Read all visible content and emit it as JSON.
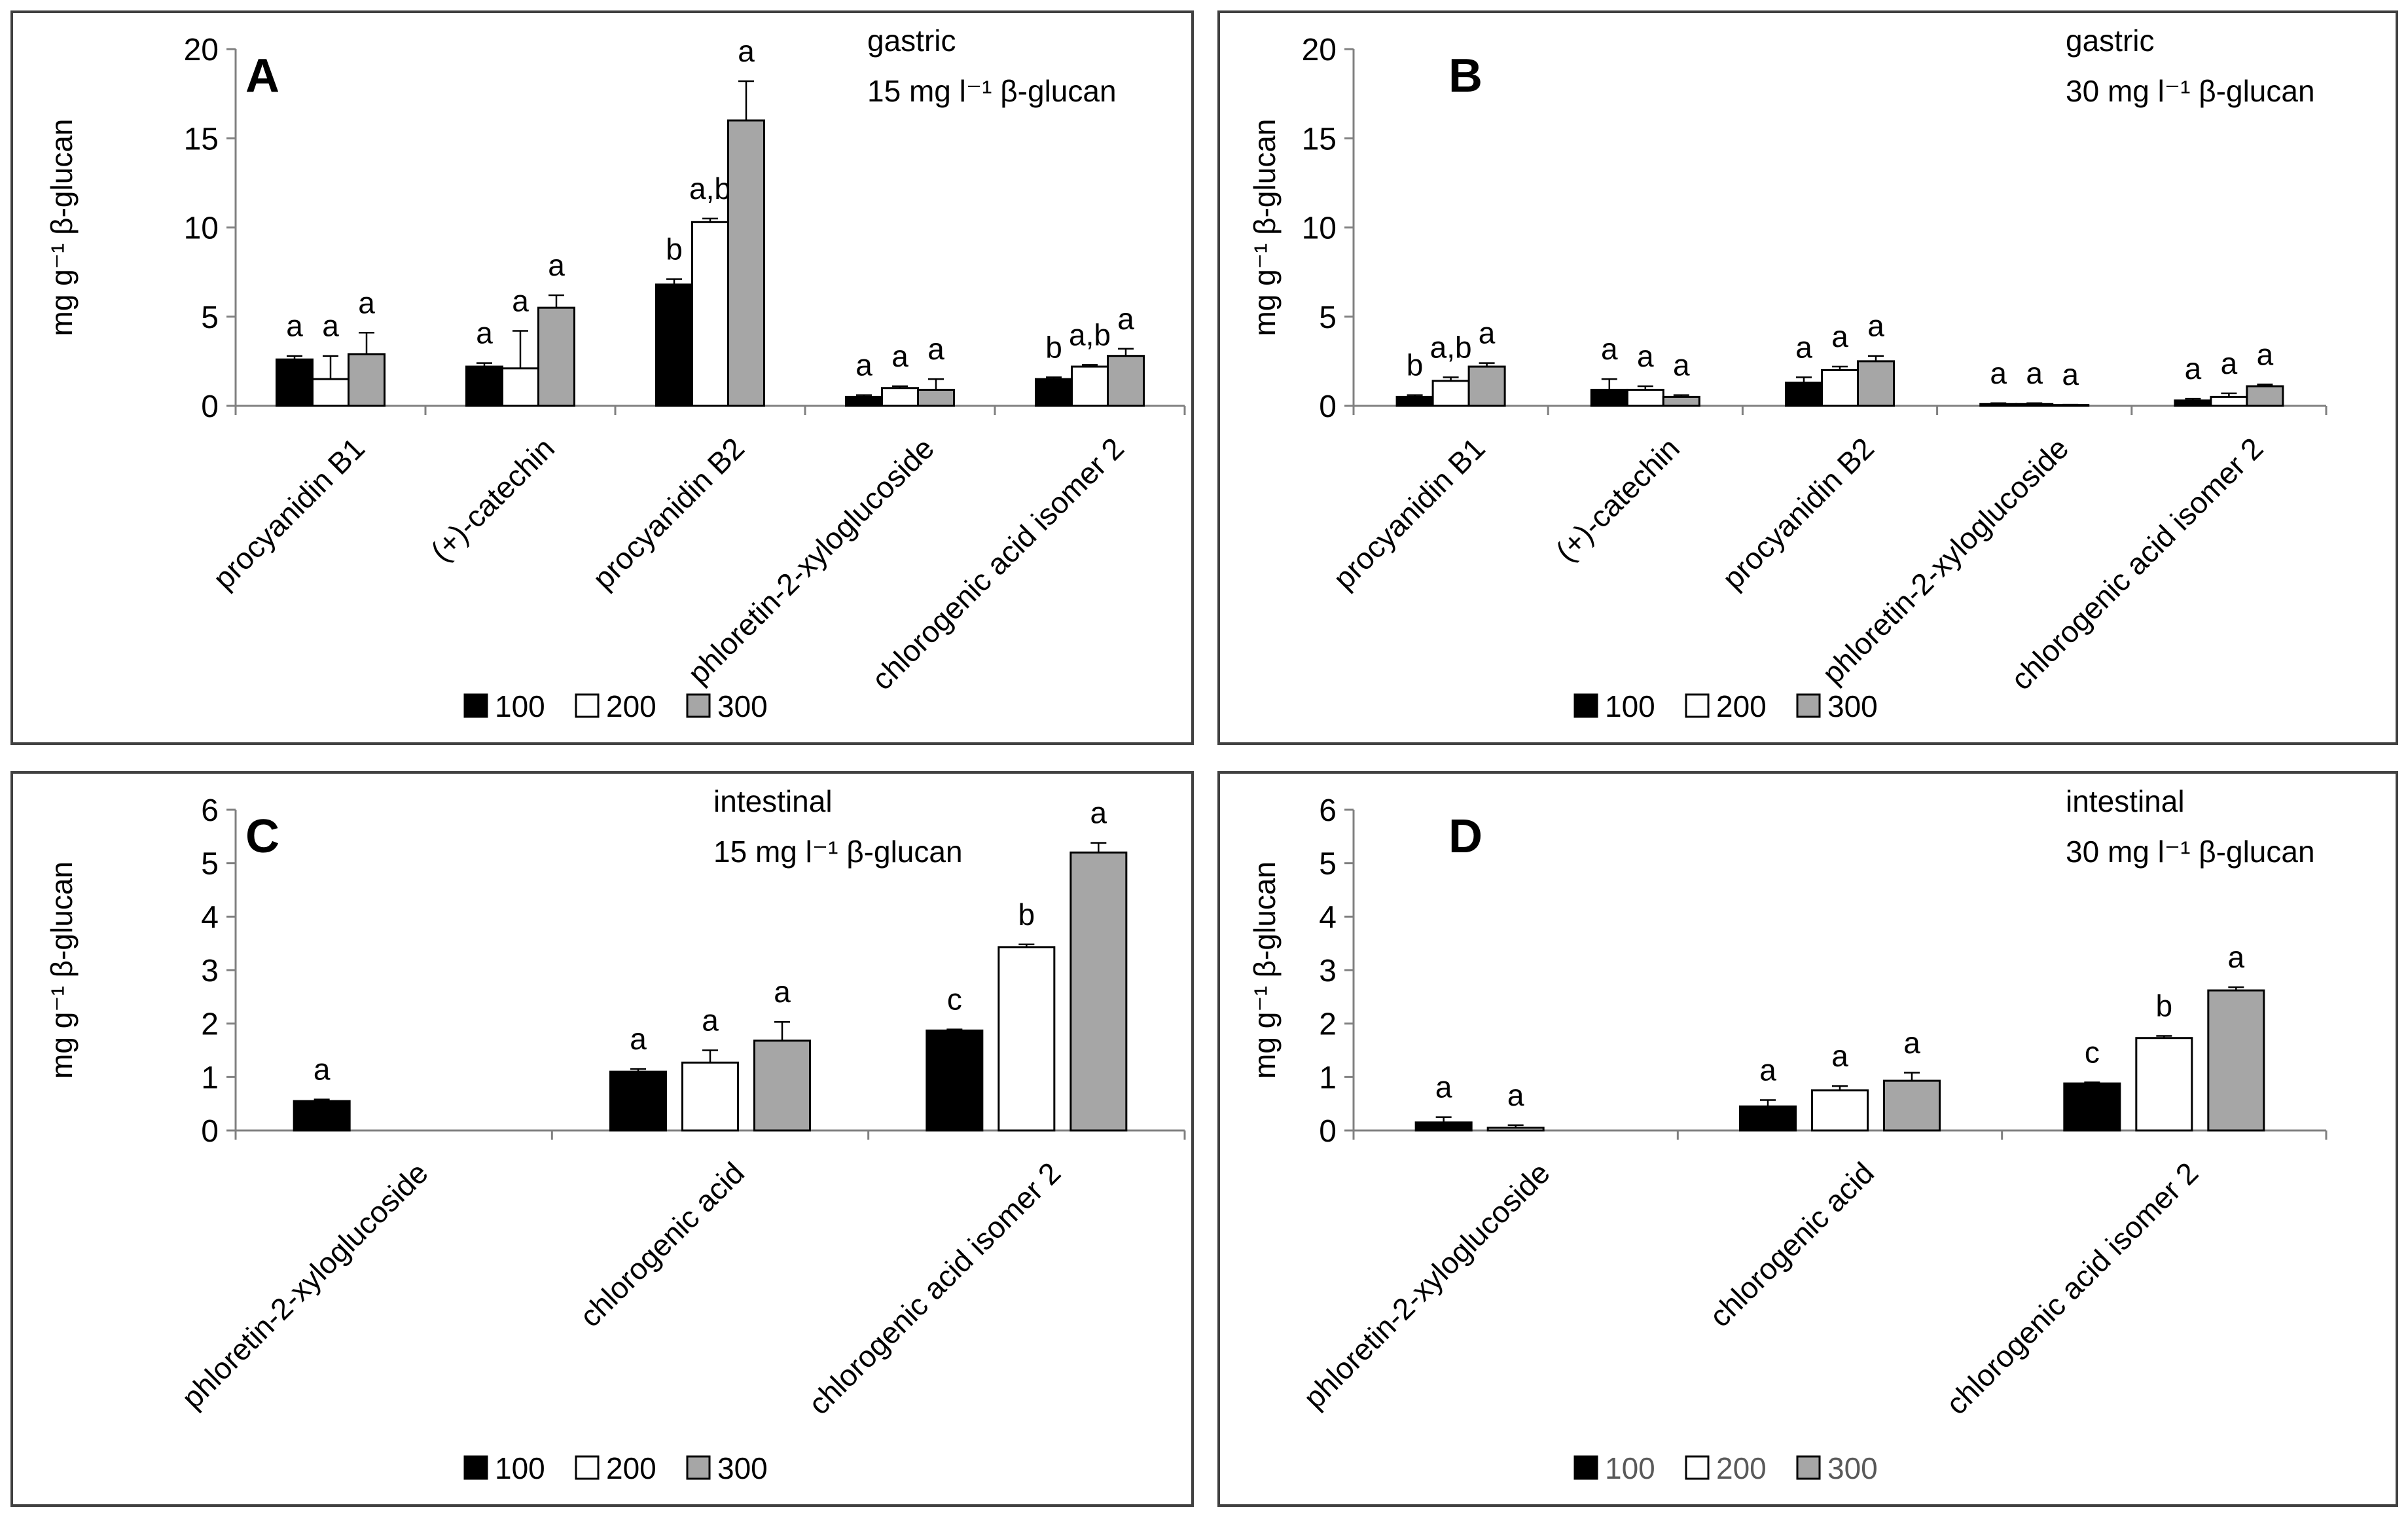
{
  "legend_labels": [
    "100",
    "200",
    "300"
  ],
  "colors": {
    "s100": "#000000",
    "s200": "#ffffff",
    "s300": "#a6a6a6",
    "axis": "#808080",
    "text": "#000000"
  },
  "chart_data": [
    {
      "panel": "A",
      "type": "bar",
      "phase": "gastric",
      "concentration": "15 mg l⁻¹ β-glucan",
      "ylabel": "mg g⁻¹ β-glucan",
      "ylim": [
        0,
        20
      ],
      "yticks": [
        "0",
        "5",
        "10",
        "15",
        "20"
      ],
      "yticks_values": [
        0,
        5,
        10,
        15,
        20
      ],
      "categories": [
        "procyanidin B1",
        "(+)-catechin",
        "procyanidin B2",
        "phloretin-2-xyloglucoside",
        "chlorogenic acid isomer 2"
      ],
      "series": [
        {
          "name": "100",
          "values": [
            2.6,
            2.2,
            6.8,
            0.5,
            1.5
          ],
          "errors": [
            0.2,
            0.2,
            0.3,
            0.1,
            0.1
          ],
          "letters": [
            "a",
            "a",
            "b",
            "a",
            "b"
          ]
        },
        {
          "name": "200",
          "values": [
            1.5,
            2.1,
            10.3,
            1.0,
            2.2
          ],
          "errors": [
            1.3,
            2.1,
            0.2,
            0.1,
            0.1
          ],
          "letters": [
            "a",
            "a",
            "a,b",
            "a",
            "a,b"
          ]
        },
        {
          "name": "300",
          "values": [
            2.9,
            5.5,
            16.0,
            0.9,
            2.8
          ],
          "errors": [
            1.2,
            0.7,
            2.2,
            0.6,
            0.4
          ],
          "letters": [
            "a",
            "a",
            "a",
            "a",
            "a"
          ]
        }
      ]
    },
    {
      "panel": "B",
      "type": "bar",
      "phase": "gastric",
      "concentration": "30 mg l⁻¹ β-glucan",
      "ylabel": "mg g⁻¹ β-glucan",
      "ylim": [
        0,
        20
      ],
      "yticks": [
        "0",
        "5",
        "10",
        "15",
        "20"
      ],
      "yticks_values": [
        0,
        5,
        10,
        15,
        20
      ],
      "categories": [
        "procyanidin B1",
        "(+)-catechin",
        "procyanidin B2",
        "phloretin-2-xyloglucoside",
        "chlorogenic acid isomer 2"
      ],
      "series": [
        {
          "name": "100",
          "values": [
            0.5,
            0.9,
            1.3,
            0.1,
            0.3
          ],
          "errors": [
            0.1,
            0.6,
            0.3,
            0.05,
            0.1
          ],
          "letters": [
            "b",
            "a",
            "a",
            "a",
            "a"
          ]
        },
        {
          "name": "200",
          "values": [
            1.4,
            0.9,
            2.0,
            0.1,
            0.5
          ],
          "errors": [
            0.2,
            0.2,
            0.2,
            0.05,
            0.2
          ],
          "letters": [
            "a,b",
            "a",
            "a",
            "a",
            "a"
          ]
        },
        {
          "name": "300",
          "values": [
            2.2,
            0.5,
            2.5,
            0.05,
            1.1
          ],
          "errors": [
            0.2,
            0.1,
            0.3,
            0.02,
            0.1
          ],
          "letters": [
            "a",
            "a",
            "a",
            "a",
            "a"
          ]
        }
      ]
    },
    {
      "panel": "C",
      "type": "bar",
      "phase": "intestinal",
      "concentration": "15 mg l⁻¹ β-glucan",
      "ylabel": "mg g⁻¹ β-glucan",
      "ylim": [
        0,
        6
      ],
      "yticks": [
        "0",
        "1",
        "2",
        "3",
        "4",
        "5",
        "6"
      ],
      "yticks_values": [
        0,
        1,
        2,
        3,
        4,
        5,
        6
      ],
      "categories": [
        "phloretin-2-xyloglucoside",
        "chlorogenic acid",
        "chlorogenic acid isomer 2"
      ],
      "series": [
        {
          "name": "100",
          "values": [
            0.55,
            1.1,
            1.87
          ],
          "errors": [
            0.03,
            0.05,
            0.02
          ],
          "letters": [
            "a",
            "a",
            "c"
          ]
        },
        {
          "name": "200",
          "values": [
            null,
            1.27,
            3.43
          ],
          "errors": [
            null,
            0.23,
            0.05
          ],
          "letters": [
            "",
            "a",
            "b"
          ]
        },
        {
          "name": "300",
          "values": [
            null,
            1.68,
            5.2
          ],
          "errors": [
            null,
            0.35,
            0.18
          ],
          "letters": [
            "",
            "a",
            "a"
          ]
        }
      ]
    },
    {
      "panel": "D",
      "type": "bar",
      "phase": "intestinal",
      "concentration": "30 mg l⁻¹ β-glucan",
      "ylabel": "mg g⁻¹ β-glucan",
      "ylim": [
        0,
        6
      ],
      "yticks": [
        "0",
        "1",
        "2",
        "3",
        "4",
        "5",
        "6"
      ],
      "yticks_values": [
        0,
        1,
        2,
        3,
        4,
        5,
        6
      ],
      "categories": [
        "phloretin-2-xyloglucoside",
        "chlorogenic acid",
        "chlorogenic acid isomer 2"
      ],
      "series": [
        {
          "name": "100",
          "values": [
            0.15,
            0.45,
            0.88
          ],
          "errors": [
            0.1,
            0.12,
            0.02
          ],
          "letters": [
            "a",
            "a",
            "c"
          ]
        },
        {
          "name": "200",
          "values": [
            0.05,
            0.75,
            1.73
          ],
          "errors": [
            0.05,
            0.08,
            0.04
          ],
          "letters": [
            "a",
            "a",
            "b"
          ]
        },
        {
          "name": "300",
          "values": [
            null,
            0.93,
            2.62
          ],
          "errors": [
            null,
            0.15,
            0.06
          ],
          "letters": [
            "",
            "a",
            "a"
          ]
        }
      ]
    }
  ]
}
